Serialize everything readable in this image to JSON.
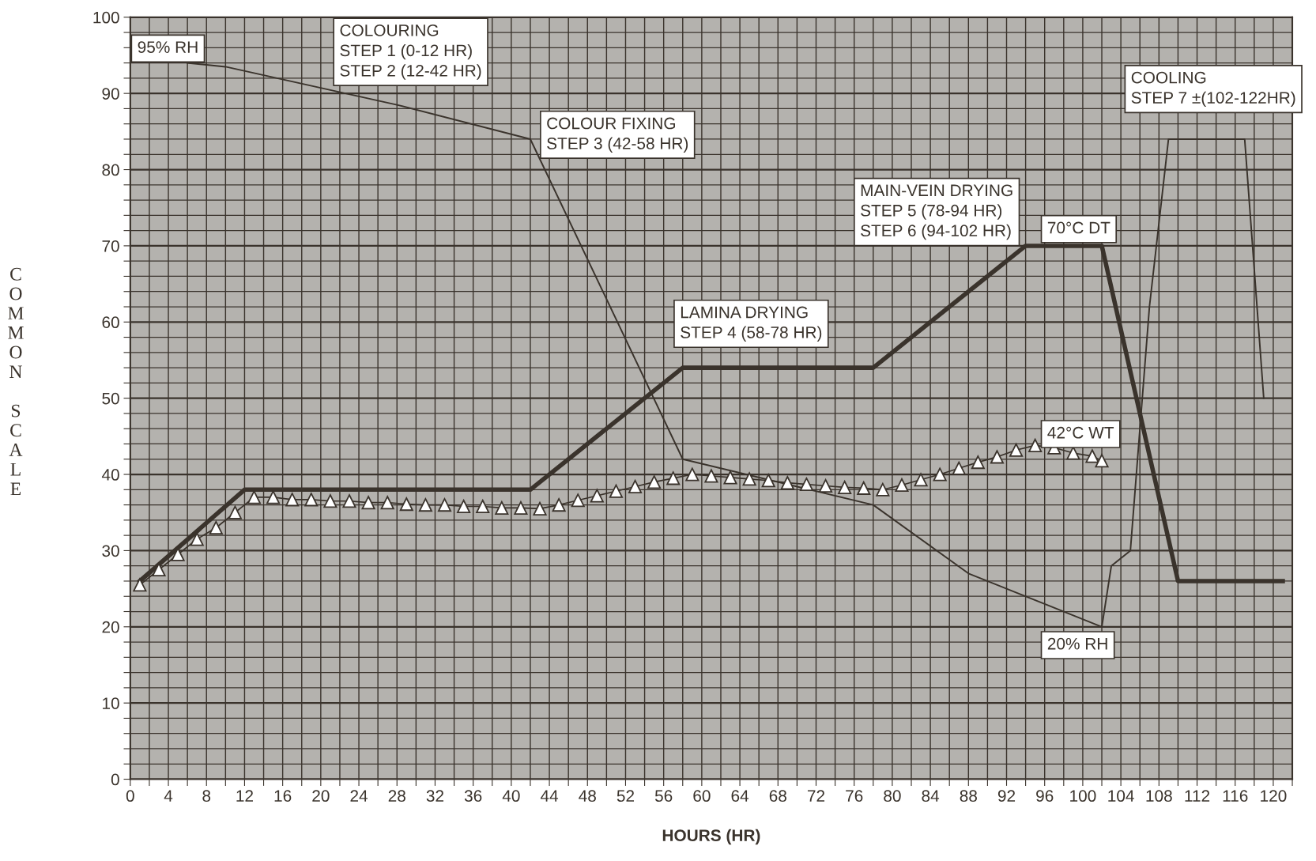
{
  "chart_data": {
    "type": "line",
    "xlabel": "HOURS (HR)",
    "ylabel": "COMMON SCALE",
    "xlim": [
      0,
      122
    ],
    "ylim": [
      0,
      100
    ],
    "xticks": [
      0,
      {
        "value": 2,
        "label": null
      },
      4,
      {
        "value": 6,
        "label": null
      },
      8,
      {
        "value": 10,
        "label": null
      },
      12,
      {
        "value": 14,
        "label": null
      },
      16,
      {
        "value": 18,
        "label": null
      },
      20,
      {
        "value": 22,
        "label": null
      },
      24,
      {
        "value": 26,
        "label": null
      },
      28,
      {
        "value": 30,
        "label": null
      },
      32,
      {
        "value": 34,
        "label": null
      },
      36,
      {
        "value": 38,
        "label": null
      },
      40,
      {
        "value": 42,
        "label": null
      },
      44,
      {
        "value": 46,
        "label": null
      },
      48,
      {
        "value": 50,
        "label": null
      },
      52,
      {
        "value": 54,
        "label": null
      },
      56,
      {
        "value": 58,
        "label": null
      },
      60,
      {
        "value": 62,
        "label": null
      },
      64,
      {
        "value": 66,
        "label": null
      },
      68,
      {
        "value": 70,
        "label": null
      },
      72,
      {
        "value": 74,
        "label": null
      },
      76,
      {
        "value": 78,
        "label": null
      },
      80,
      {
        "value": 82,
        "label": null
      },
      84,
      {
        "value": 86,
        "label": null
      },
      88,
      {
        "value": 90,
        "label": null
      },
      92,
      {
        "value": 94,
        "label": null
      },
      96,
      {
        "value": 98,
        "label": null
      },
      100,
      {
        "value": 102,
        "label": null
      },
      104,
      {
        "value": 106,
        "label": null
      },
      108,
      {
        "value": 110,
        "label": null
      },
      112,
      {
        "value": 114,
        "label": null
      },
      116,
      {
        "value": 118,
        "label": null
      },
      120,
      {
        "value": 122,
        "label": null
      }
    ],
    "yticks": [
      0,
      {
        "value": 2,
        "label": null
      },
      {
        "value": 4,
        "label": null
      },
      {
        "value": 6,
        "label": null
      },
      {
        "value": 8,
        "label": null
      },
      10,
      {
        "value": 12,
        "label": null
      },
      {
        "value": 14,
        "label": null
      },
      {
        "value": 16,
        "label": null
      },
      {
        "value": 18,
        "label": null
      },
      20,
      {
        "value": 22,
        "label": null
      },
      {
        "value": 24,
        "label": null
      },
      {
        "value": 26,
        "label": null
      },
      {
        "value": 28,
        "label": null
      },
      30,
      {
        "value": 32,
        "label": null
      },
      {
        "value": 34,
        "label": null
      },
      {
        "value": 36,
        "label": null
      },
      {
        "value": 38,
        "label": null
      },
      40,
      {
        "value": 42,
        "label": null
      },
      {
        "value": 44,
        "label": null
      },
      {
        "value": 46,
        "label": null
      },
      {
        "value": 48,
        "label": null
      },
      50,
      {
        "value": 52,
        "label": null
      },
      {
        "value": 54,
        "label": null
      },
      {
        "value": 56,
        "label": null
      },
      {
        "value": 58,
        "label": null
      },
      60,
      {
        "value": 62,
        "label": null
      },
      {
        "value": 64,
        "label": null
      },
      {
        "value": 66,
        "label": null
      },
      {
        "value": 68,
        "label": null
      },
      70,
      {
        "value": 72,
        "label": null
      },
      {
        "value": 74,
        "label": null
      },
      {
        "value": 76,
        "label": null
      },
      {
        "value": 78,
        "label": null
      },
      80,
      {
        "value": 82,
        "label": null
      },
      {
        "value": 84,
        "label": null
      },
      {
        "value": 86,
        "label": null
      },
      {
        "value": 88,
        "label": null
      },
      90,
      {
        "value": 92,
        "label": null
      },
      {
        "value": 94,
        "label": null
      },
      {
        "value": 96,
        "label": null
      },
      {
        "value": 98,
        "label": null
      },
      100
    ],
    "grid": true,
    "line_style": "solid",
    "series": [
      {
        "color": "#3a332c",
        "x": [
          1,
          12,
          42,
          58,
          78,
          94,
          102,
          110,
          121
        ],
        "values": [
          26,
          38,
          38,
          54,
          54,
          70,
          70,
          26,
          26
        ]
      },
      {
        "color": "#3a332c",
        "x": [
          6,
          10,
          28,
          42,
          58,
          78,
          88,
          96,
          102,
          103,
          105,
          107,
          109,
          117,
          119
        ],
        "values": [
          94,
          93.5,
          88.5,
          84,
          42,
          36,
          27,
          23,
          20,
          28,
          30,
          62,
          84,
          84,
          50
        ]
      },
      {
        "color": "#3a332c",
        "marker": "triangle",
        "x": [
          1,
          3,
          5,
          7,
          9,
          11,
          13,
          15,
          17,
          19,
          21,
          23,
          25,
          27,
          29,
          31,
          33,
          35,
          37,
          39,
          41,
          43,
          45,
          47,
          49,
          51,
          53,
          55,
          57,
          59,
          61,
          63,
          65,
          67,
          69,
          71,
          73,
          75,
          77,
          79,
          81,
          83,
          85,
          87,
          89,
          91,
          93,
          95,
          97,
          99,
          101,
          102
        ],
        "values": [
          25.5,
          27.5,
          29.5,
          31.5,
          33,
          35,
          37,
          37,
          36.7,
          36.7,
          36.5,
          36.5,
          36.3,
          36.3,
          36.1,
          36,
          36,
          35.8,
          35.8,
          35.6,
          35.6,
          35.5,
          36,
          36.6,
          37.2,
          37.8,
          38.4,
          39,
          39.5,
          40,
          39.8,
          39.6,
          39.4,
          39.2,
          38.9,
          38.7,
          38.5,
          38.3,
          38.2,
          38,
          38.6,
          39.3,
          40,
          40.8,
          41.6,
          42.3,
          43.2,
          43.8,
          43.5,
          42.8,
          42.4,
          41.8
        ]
      }
    ],
    "annotations": [
      "95% RH",
      "COLOURING\nSTEP 1 (0-12 HR)\nSTEP 2 (12-42 HR)",
      "COLOUR FIXING\nSTEP 3 (42-58 HR)",
      "LAMINA DRYING\nSTEP 4 (58-78 HR)",
      "MAIN-VEIN DRYING\nSTEP 5 (78-94 HR)\nSTEP 6 (94-102 HR)",
      "COOLING\nSTEP 7 ±(102-122HR)",
      "70°C DT",
      "42°C WT",
      "20% RH"
    ]
  }
}
